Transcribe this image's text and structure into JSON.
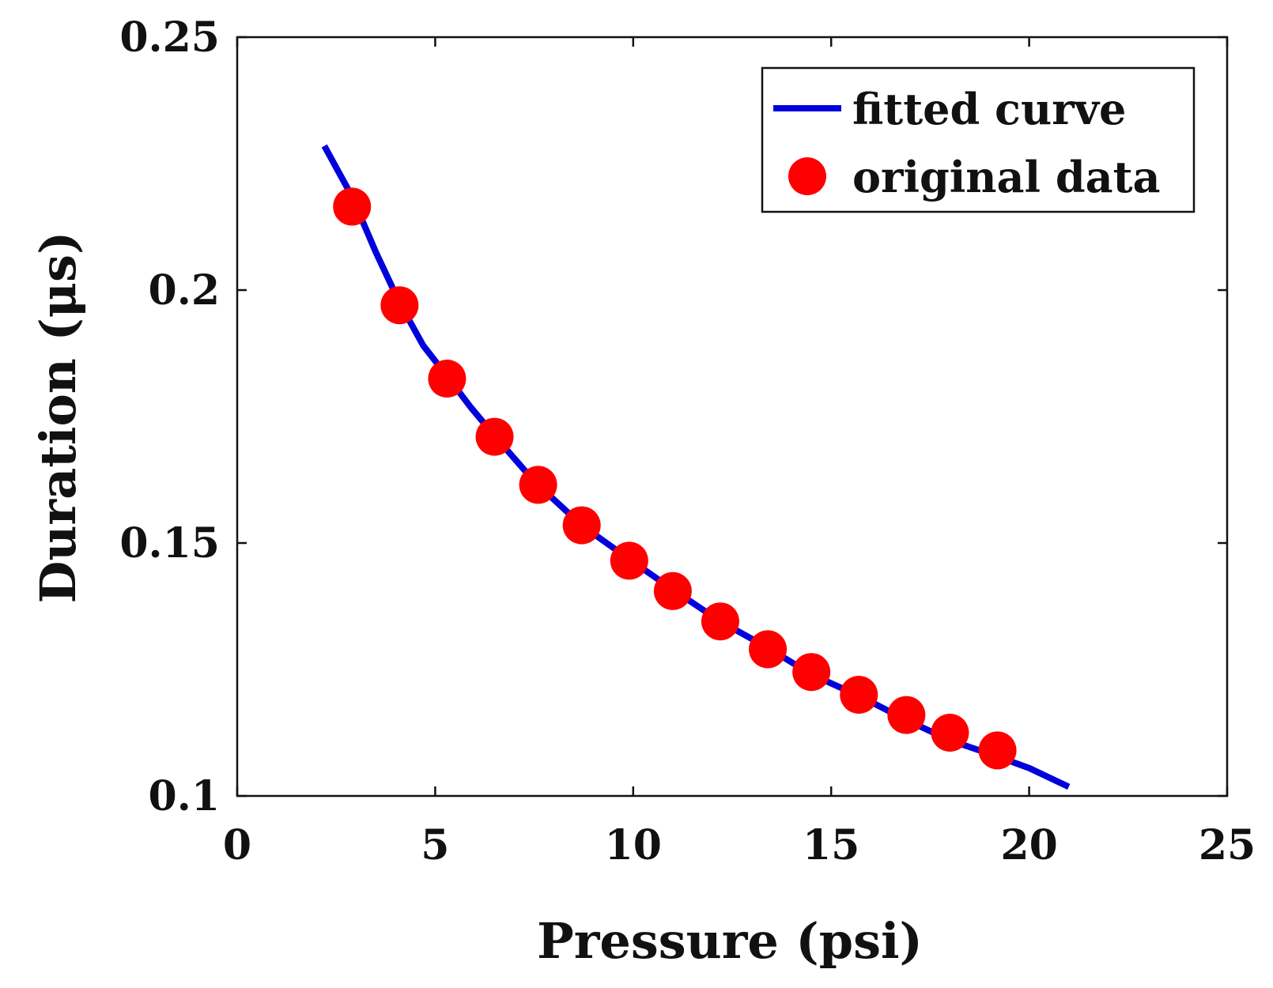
{
  "chart_data": {
    "type": "line",
    "xlabel": "Pressure (psi)",
    "ylabel": "Duration (μs)",
    "xlim": [
      0,
      25
    ],
    "ylim": [
      0.1,
      0.25
    ],
    "grid": false,
    "legend_position": "top-right",
    "xticks": [
      0,
      5,
      10,
      15,
      20,
      25
    ],
    "xtick_labels": [
      "0",
      "5",
      "10",
      "15",
      "20",
      "25"
    ],
    "yticks": [
      0.1,
      0.15,
      0.2,
      0.25
    ],
    "ytick_labels": [
      "0.1",
      "0.15",
      "0.2",
      "0.25"
    ],
    "series": [
      {
        "name": "fitted curve",
        "kind": "line",
        "color": "#0000dd",
        "x": [
          2.2,
          2.9,
          3.5,
          4.1,
          4.7,
          5.3,
          5.9,
          6.5,
          7.5,
          8.7,
          9.9,
          11.0,
          12.2,
          13.4,
          14.5,
          15.7,
          16.9,
          18.0,
          19.2,
          20.0,
          21.0
        ],
        "y": [
          0.2285,
          0.2185,
          0.2075,
          0.1975,
          0.189,
          0.183,
          0.1768,
          0.1712,
          0.1622,
          0.1535,
          0.1468,
          0.1408,
          0.1345,
          0.1293,
          0.124,
          0.1198,
          0.115,
          0.111,
          0.1078,
          0.1055,
          0.1018
        ]
      },
      {
        "name": "original data",
        "kind": "scatter",
        "color": "#ff0000",
        "x": [
          2.9,
          4.1,
          5.3,
          6.5,
          7.6,
          8.7,
          9.9,
          11.0,
          12.2,
          13.4,
          14.5,
          15.7,
          16.9,
          18.0,
          19.2
        ],
        "y": [
          0.2165,
          0.197,
          0.1825,
          0.171,
          0.1615,
          0.1535,
          0.1465,
          0.1405,
          0.1345,
          0.129,
          0.1245,
          0.12,
          0.116,
          0.1125,
          0.109
        ]
      }
    ]
  }
}
